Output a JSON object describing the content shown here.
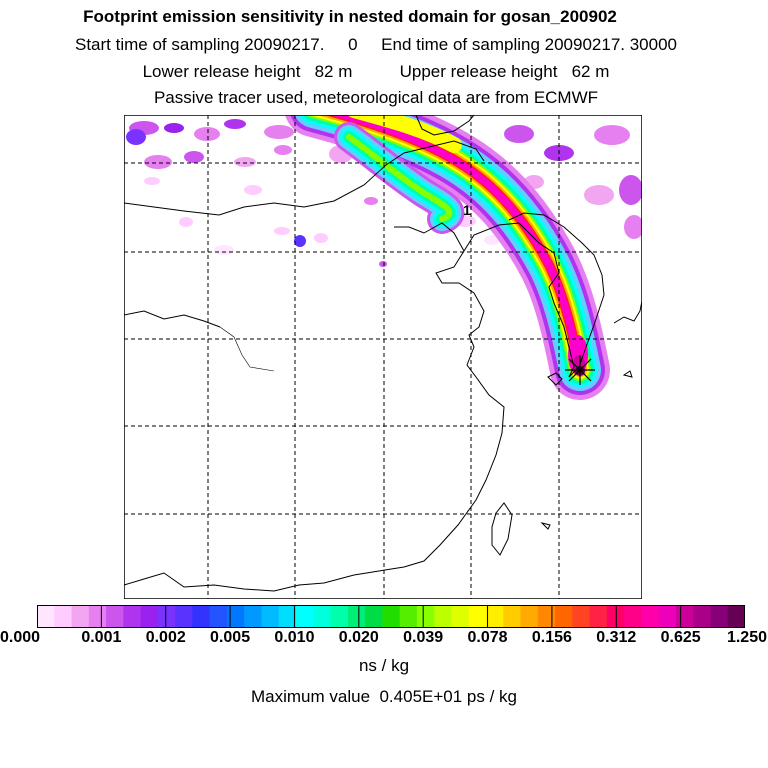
{
  "header": {
    "title": "Footprint emission sensitivity in nested domain for gosan_200902",
    "line2": "Start time of sampling 20090217.     0     End time of sampling 20090217. 30000",
    "line3": "Lower release height   82 m          Upper release height   62 m",
    "line4": "Passive tracer used, meteorological data are from ECMWF"
  },
  "map": {
    "release_marker_label": "1",
    "plume_colors": [
      "#ff00cc",
      "#ff1e1e",
      "#ffaa00",
      "#ffff00",
      "#88ff00",
      "#00ffaa",
      "#00ffff",
      "#66ccff"
    ]
  },
  "colorbar": {
    "colors": [
      "#ffe6ff",
      "#ffccff",
      "#f2a6f2",
      "#e680f0",
      "#cc55ee",
      "#b033ee",
      "#9922ee",
      "#7a33ff",
      "#5a33ff",
      "#3333ff",
      "#2255ff",
      "#0077ff",
      "#0099ff",
      "#00bbff",
      "#00ddff",
      "#00ffff",
      "#00ffdd",
      "#00ffaa",
      "#00ee77",
      "#00dd44",
      "#22dd00",
      "#55ee00",
      "#88ff00",
      "#bbff00",
      "#ddff00",
      "#ffff00",
      "#ffee00",
      "#ffcc00",
      "#ffaa00",
      "#ff8800",
      "#ff6600",
      "#ff4422",
      "#ff2244",
      "#ff0066",
      "#ff0088",
      "#ff00aa",
      "#ee00bb",
      "#cc0099",
      "#aa0088",
      "#880077",
      "#660055"
    ],
    "ticks": [
      "0.000",
      "0.001",
      "0.002",
      "0.005",
      "0.010",
      "0.020",
      "0.039",
      "0.078",
      "0.156",
      "0.312",
      "0.625",
      "1.250"
    ],
    "units": "ns / kg"
  },
  "footer": {
    "max_value": "Maximum value  0.405E+01 ps / kg"
  }
}
